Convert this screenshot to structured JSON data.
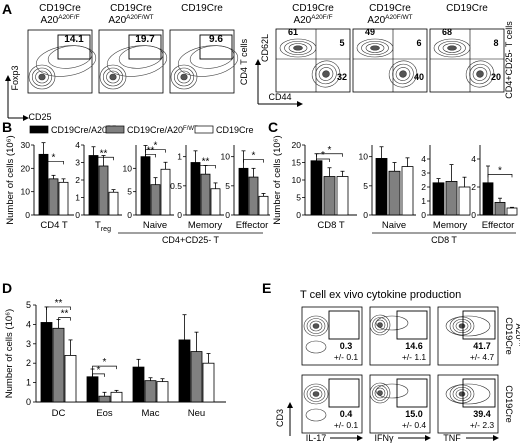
{
  "panels": {
    "A": {
      "letter": "A",
      "foxp3": {
        "plots": [
          {
            "genotype": "CD19Cre",
            "superscript": "A20F/F",
            "value": "14.1"
          },
          {
            "genotype": "CD19Cre",
            "superscript": "A20F/WT",
            "value": "19.7"
          },
          {
            "genotype": "CD19Cre",
            "superscript": "",
            "value": "9.6"
          }
        ],
        "x_axis": "CD25",
        "y_axis": "Foxp3",
        "side_label": "CD4 T cells"
      },
      "cd62l": {
        "plots": [
          {
            "genotype": "CD19Cre",
            "superscript": "A20F/F",
            "q_tl": "61",
            "q_tr": "5",
            "q_br": "32"
          },
          {
            "genotype": "CD19Cre",
            "superscript": "A20F/WT",
            "q_tl": "49",
            "q_tr": "6",
            "q_br": "40"
          },
          {
            "genotype": "CD19Cre",
            "superscript": "",
            "q_tl": "68",
            "q_tr": "8",
            "q_br": "20"
          }
        ],
        "x_axis": "CD44",
        "y_axis": "CD62L",
        "side_label": "CD4+CD25- T cells"
      }
    },
    "B": {
      "letter": "B"
    },
    "C": {
      "letter": "C"
    },
    "D": {
      "letter": "D"
    },
    "E": {
      "letter": "E",
      "title": "T cell ex vivo cytokine production",
      "y_axis": "CD3",
      "x_labels": [
        "IL-17",
        "IFNγ",
        "TNF"
      ],
      "rows": [
        {
          "label": "CD19Cre",
          "label2": "A20F/F",
          "cells": [
            {
              "v": "0.3",
              "sd": "+/- 0.1"
            },
            {
              "v": "14.6",
              "sd": "+/- 1.1"
            },
            {
              "v": "41.7",
              "sd": "+/- 4.7"
            }
          ]
        },
        {
          "label": "CD19Cre",
          "label2": "",
          "cells": [
            {
              "v": "0.4",
              "sd": "+/- 0.1"
            },
            {
              "v": "15.0",
              "sd": "+/- 0.4"
            },
            {
              "v": "39.4",
              "sd": "+/- 2.3"
            }
          ]
        }
      ]
    }
  },
  "legend": {
    "items": [
      {
        "text": "CD19Cre/A20",
        "sup": "F/F",
        "color": "#000000"
      },
      {
        "text": "CD19Cre/A20",
        "sup": "F/WT",
        "color": "#808080"
      },
      {
        "text": "CD19Cre",
        "sup": "",
        "color": "#ffffff"
      }
    ]
  },
  "colors": {
    "ff": "#000000",
    "fwt": "#808080",
    "cre": "#ffffff"
  },
  "chart_data": [
    {
      "type": "bar",
      "panel": "B",
      "ylabel": "Number of cells (10⁶)",
      "subgroup_label": "CD4+CD25- T",
      "series": [
        "CD19Cre/A20F/F",
        "CD19Cre/A20F/WT",
        "CD19Cre"
      ],
      "groups": [
        {
          "name": "CD4 T",
          "ylim": [
            0,
            30
          ],
          "ticks": [
            "0",
            "10",
            "20",
            "30"
          ],
          "values": [
            26,
            15.5,
            14
          ],
          "errors": [
            5,
            1.5,
            1.5
          ],
          "sig": [
            {
              "a": 0,
              "b": 2,
              "label": "*",
              "y": 23
            }
          ]
        },
        {
          "name": "Treg",
          "ylim": [
            0,
            4
          ],
          "ticks": [
            "0",
            "1",
            "2",
            "3",
            "4"
          ],
          "values": [
            3.4,
            2.8,
            1.3
          ],
          "errors": [
            0.5,
            0.6,
            0.15
          ],
          "sig": [
            {
              "a": 0,
              "b": 2,
              "label": "**",
              "y": 3.3
            }
          ]
        },
        {
          "name": "Naive",
          "ylim": [
            0,
            15
          ],
          "ticks": [
            "0",
            "5",
            "10"
          ],
          "values": [
            12.5,
            6.5,
            9.8
          ],
          "errors": [
            2.4,
            1.5,
            1.5
          ],
          "sig": [
            {
              "a": 0,
              "b": 1,
              "label": "**",
              "y": 13
            },
            {
              "a": 0,
              "b": 2,
              "label": "*",
              "y": 14
            }
          ]
        },
        {
          "name": "Memory",
          "ylim": [
            0,
            1.2
          ],
          "ticks": [
            "0",
            "0.5",
            "1"
          ],
          "values": [
            0.9,
            0.7,
            0.45
          ],
          "errors": [
            0.2,
            0.15,
            0.1
          ],
          "sig": [
            {
              "a": 0,
              "b": 2,
              "label": "**",
              "y": 0.85
            }
          ]
        },
        {
          "name": "Effector",
          "ylim": [
            0,
            12
          ],
          "ticks": [
            "0",
            "5",
            "10"
          ],
          "values": [
            8,
            6.5,
            3.2
          ],
          "errors": [
            3,
            1.5,
            0.5
          ],
          "sig": [
            {
              "a": 0,
              "b": 2,
              "label": "*",
              "y": 9.5
            }
          ]
        }
      ]
    },
    {
      "type": "bar",
      "panel": "C",
      "ylabel": "Number of cells (10⁶)",
      "subgroup_label": "CD8 T",
      "series": [
        "CD19Cre/A20F/F",
        "CD19Cre/A20F/WT",
        "CD19Cre"
      ],
      "groups": [
        {
          "name": "CD8 T",
          "ylim": [
            0,
            20
          ],
          "ticks": [
            "0",
            "5",
            "10",
            "15",
            "20"
          ],
          "values": [
            15.5,
            11,
            11
          ],
          "errors": [
            2,
            2.5,
            1.5
          ],
          "sig": [
            {
              "a": 0,
              "b": 1,
              "label": "*",
              "y": 16
            },
            {
              "a": 0,
              "b": 2,
              "label": "*",
              "y": 17.5
            }
          ]
        },
        {
          "name": "Naive",
          "ylim": [
            0,
            12
          ],
          "ticks": [
            "0",
            "5",
            "10"
          ],
          "values": [
            9.7,
            7.5,
            8.3
          ],
          "errors": [
            2,
            1.5,
            1.5
          ],
          "sig": []
        },
        {
          "name": "Memory",
          "ylim": [
            0,
            5
          ],
          "ticks": [
            "0",
            "1",
            "2",
            "3",
            "4"
          ],
          "values": [
            2.3,
            2.4,
            2
          ],
          "errors": [
            0.3,
            1.2,
            0.7
          ],
          "sig": []
        },
        {
          "name": "Effector",
          "ylim": [
            0,
            5
          ],
          "ticks": [
            "0",
            "2",
            "4"
          ],
          "values": [
            2.3,
            0.9,
            0.5
          ],
          "errors": [
            1.2,
            0.3,
            0.05
          ],
          "sig": [
            {
              "a": 0,
              "b": 2,
              "label": "*",
              "y": 2.9
            }
          ]
        }
      ]
    },
    {
      "type": "bar",
      "panel": "D",
      "ylabel": "Number of cells (10⁶)",
      "ylim": [
        0,
        5
      ],
      "ticks": [
        "0",
        "1",
        "2",
        "3",
        "4",
        "5"
      ],
      "series": [
        "CD19Cre/A20F/F",
        "CD19Cre/A20F/WT",
        "CD19Cre"
      ],
      "groups": [
        {
          "name": "DC",
          "values": [
            4.1,
            3.8,
            2.4
          ],
          "errors": [
            0.8,
            0.45,
            0.8
          ]
        },
        {
          "name": "Eos",
          "values": [
            1.3,
            0.3,
            0.5
          ],
          "errors": [
            0.4,
            0.2,
            0.1
          ]
        },
        {
          "name": "Mac",
          "values": [
            1.8,
            1.1,
            1.05
          ],
          "errors": [
            0.4,
            0.15,
            0.15
          ]
        },
        {
          "name": "Neu",
          "values": [
            3.2,
            2.6,
            2
          ],
          "errors": [
            1.3,
            1,
            0.5
          ]
        }
      ],
      "sig": [
        {
          "g1": 0,
          "b1": 0,
          "g2": 0,
          "b2": 2,
          "label": "**",
          "y": 4.9
        },
        {
          "g1": 0,
          "b1": 1,
          "g2": 0,
          "b2": 2,
          "label": "**",
          "y": 4.35
        },
        {
          "g1": 1,
          "b1": 0,
          "g2": 1,
          "b2": 2,
          "label": "*",
          "y": 1.85
        },
        {
          "g1": 1,
          "b1": 0,
          "g2": 1,
          "b2": 1,
          "label": "*",
          "y": 1.45
        }
      ]
    }
  ]
}
